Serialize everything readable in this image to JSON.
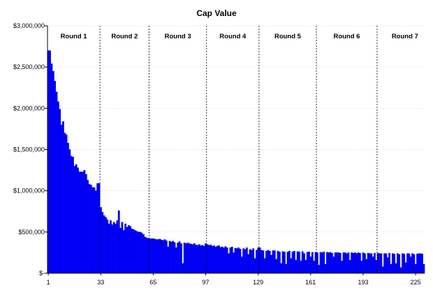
{
  "chart_data": {
    "type": "bar",
    "title": "Cap Value",
    "xlabel": "",
    "ylabel": "",
    "ylim": [
      0,
      3000000
    ],
    "y_ticks": [
      0,
      500000,
      1000000,
      1500000,
      2000000,
      2500000,
      3000000
    ],
    "y_tick_labels": [
      "$-",
      "$500,000",
      "$1,000,000",
      "$1,500,000",
      "$2,000,000",
      "$2,500,000",
      "$3,000,000"
    ],
    "x_tick_labels": [
      "1",
      "33",
      "65",
      "97",
      "129",
      "161",
      "193",
      "225"
    ],
    "bar_color": "#0000ff",
    "grid": true,
    "legend": "none",
    "rounds": [
      {
        "label": "Round 1",
        "start": 1,
        "end": 32
      },
      {
        "label": "Round 2",
        "start": 33,
        "end": 62
      },
      {
        "label": "Round 3",
        "start": 63,
        "end": 97
      },
      {
        "label": "Round 4",
        "start": 98,
        "end": 129
      },
      {
        "label": "Round 5",
        "start": 130,
        "end": 164
      },
      {
        "label": "Round 6",
        "start": 165,
        "end": 201
      },
      {
        "label": "Round 7",
        "start": 202,
        "end": 235
      }
    ],
    "values": [
      2700000,
      2700000,
      2540000,
      2450000,
      2330000,
      2200000,
      2080000,
      1990000,
      1800000,
      1840000,
      1700000,
      1680000,
      1580000,
      1500000,
      1420000,
      1410000,
      1300000,
      1320000,
      1280000,
      1230000,
      1230000,
      1230000,
      1250000,
      1200000,
      1130000,
      1080000,
      1070000,
      1040000,
      1040000,
      1000000,
      1090000,
      1090000,
      800000,
      740000,
      700000,
      680000,
      650000,
      600000,
      640000,
      590000,
      620000,
      600000,
      640000,
      760000,
      550000,
      620000,
      520000,
      600000,
      560000,
      580000,
      570000,
      540000,
      530000,
      520000,
      510000,
      500000,
      500000,
      490000,
      470000,
      440000,
      430000,
      425000,
      420000,
      420000,
      420000,
      415000,
      410000,
      410000,
      415000,
      405000,
      400000,
      410000,
      395000,
      320000,
      390000,
      380000,
      390000,
      375000,
      310000,
      370000,
      385000,
      360000,
      120000,
      370000,
      360000,
      370000,
      360000,
      355000,
      350000,
      360000,
      345000,
      340000,
      350000,
      335000,
      340000,
      330000,
      360000,
      350000,
      340000,
      345000,
      330000,
      335000,
      320000,
      330000,
      335000,
      315000,
      320000,
      310000,
      325000,
      310000,
      240000,
      310000,
      320000,
      250000,
      305000,
      300000,
      310000,
      295000,
      200000,
      300000,
      290000,
      310000,
      230000,
      290000,
      280000,
      300000,
      180000,
      280000,
      310000,
      310000,
      280000,
      275000,
      180000,
      270000,
      280000,
      270000,
      220000,
      275000,
      275000,
      170000,
      270000,
      260000,
      120000,
      265000,
      260000,
      110000,
      260000,
      270000,
      180000,
      260000,
      270000,
      160000,
      265000,
      260000,
      150000,
      265000,
      240000,
      160000,
      255000,
      260000,
      200000,
      255000,
      150000,
      255000,
      250000,
      100000,
      255000,
      250000,
      260000,
      110000,
      255000,
      250000,
      255000,
      245000,
      200000,
      250000,
      250000,
      250000,
      245000,
      150000,
      250000,
      250000,
      240000,
      250000,
      160000,
      250000,
      245000,
      250000,
      240000,
      250000,
      245000,
      150000,
      250000,
      240000,
      170000,
      245000,
      240000,
      240000,
      200000,
      245000,
      160000,
      245000,
      240000,
      240000,
      80000,
      240000,
      240000,
      190000,
      245000,
      110000,
      240000,
      235000,
      120000,
      240000,
      230000,
      70000,
      240000,
      235000,
      130000,
      240000,
      240000,
      200000,
      240000,
      230000,
      110000,
      235000,
      240000,
      240000,
      235000,
      110000
    ]
  }
}
